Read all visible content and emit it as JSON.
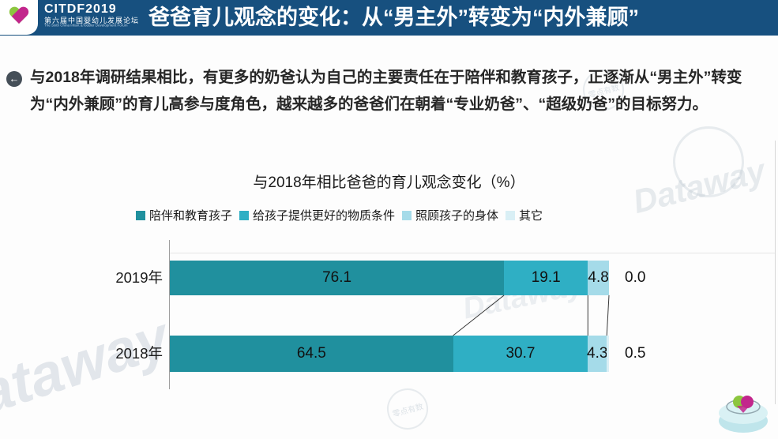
{
  "header": {
    "logo": {
      "icon": "two-tone-heart",
      "wordmark": "CITDF2019",
      "subtitle_cn": "第六届中国婴幼儿发展论坛",
      "subtitle_en": "The Sixth China Infant &Toddler Development Forum"
    },
    "title": "爸爸育儿观念的变化：从“男主外”转变为“内外兼顾”"
  },
  "body": {
    "bullet_icon": "arrow-left-circle",
    "paragraph": "与2018年调研结果相比，有更多的奶爸认为自己的主要责任在于陪伴和教育孩子，正逐渐从“男主外”转变为“内外兼顾”的育儿高参与度角色，越来越多的爸爸们在朝着“专业奶爸”、“超级奶爸”的目标努力。"
  },
  "chart_data": {
    "type": "bar",
    "orientation": "horizontal",
    "stacked": true,
    "title": "与2018年相比爸爸的育儿观念变化（%）",
    "categories": [
      "2019年",
      "2018年"
    ],
    "series": [
      {
        "name": "陪伴和教育孩子",
        "color": "#20909E",
        "values": [
          76.1,
          64.5
        ]
      },
      {
        "name": "给孩子提供更好的物质条件",
        "color": "#2FAFC4",
        "values": [
          19.1,
          30.7
        ]
      },
      {
        "name": "照顾孩子的身体",
        "color": "#A5DBE9",
        "values": [
          4.8,
          4.3
        ]
      },
      {
        "name": "其它",
        "color": "#D9EFF5",
        "values": [
          0.0,
          0.5
        ]
      }
    ],
    "value_labels": [
      [
        "76.1",
        "19.1",
        "4.8",
        "0.0"
      ],
      [
        "64.5",
        "30.7",
        "4.3",
        "0.5"
      ]
    ],
    "xlim": [
      0,
      100
    ],
    "legend_position": "top",
    "grid": false
  },
  "watermarks": {
    "brand": "Dataway",
    "brand_partial": "ataway",
    "stamp": "零点有数"
  }
}
